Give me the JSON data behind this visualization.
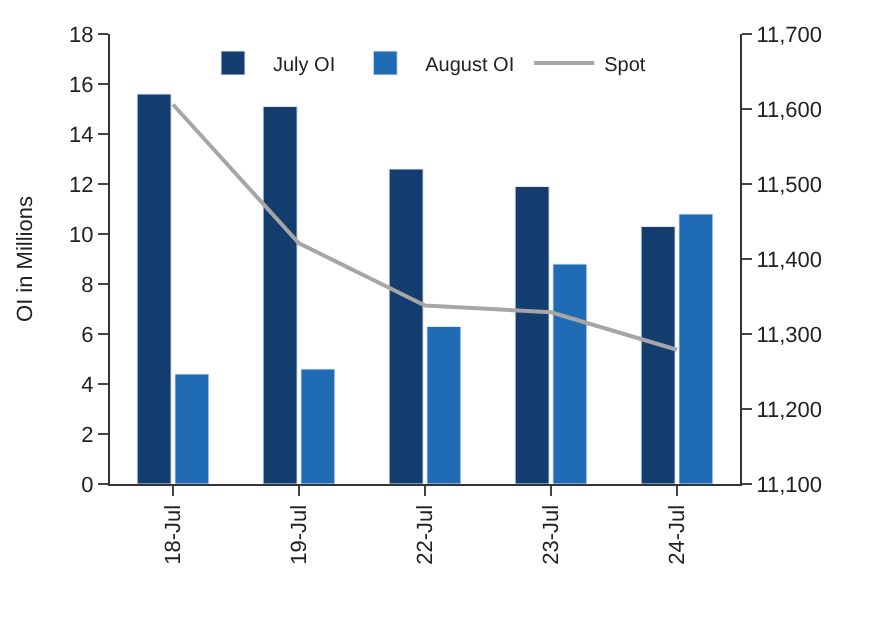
{
  "chart_data": {
    "type": "bar",
    "ylabel": "OI in Millions",
    "categories": [
      "18-Jul",
      "19-Jul",
      "22-Jul",
      "23-Jul",
      "24-Jul"
    ],
    "series": [
      {
        "name": "July OI",
        "color": "#123d6e",
        "values": [
          15.6,
          15.1,
          12.6,
          11.9,
          10.3
        ]
      },
      {
        "name": "August OI",
        "color": "#1f6bb4",
        "values": [
          4.4,
          4.6,
          6.3,
          8.8,
          10.8
        ]
      },
      {
        "name": "Spot",
        "type": "line",
        "axis": "y2",
        "color": "#a6a6a6",
        "marker": "none",
        "values": [
          11606,
          11421,
          11338,
          11329,
          11279
        ]
      }
    ],
    "ylim": [
      0,
      18
    ],
    "yticks": [
      0,
      2,
      4,
      6,
      8,
      10,
      12,
      14,
      16,
      18
    ],
    "y2lim": [
      11100,
      11700
    ],
    "y2ticks": [
      {
        "value": 11100,
        "label": "11,100"
      },
      {
        "value": 11200,
        "label": "11,200"
      },
      {
        "value": 11300,
        "label": "11,300"
      },
      {
        "value": 11400,
        "label": "11,400"
      },
      {
        "value": 11500,
        "label": "11,500"
      },
      {
        "value": 11600,
        "label": "11,600"
      },
      {
        "value": 11700,
        "label": "11,700"
      }
    ],
    "legend": "top"
  }
}
